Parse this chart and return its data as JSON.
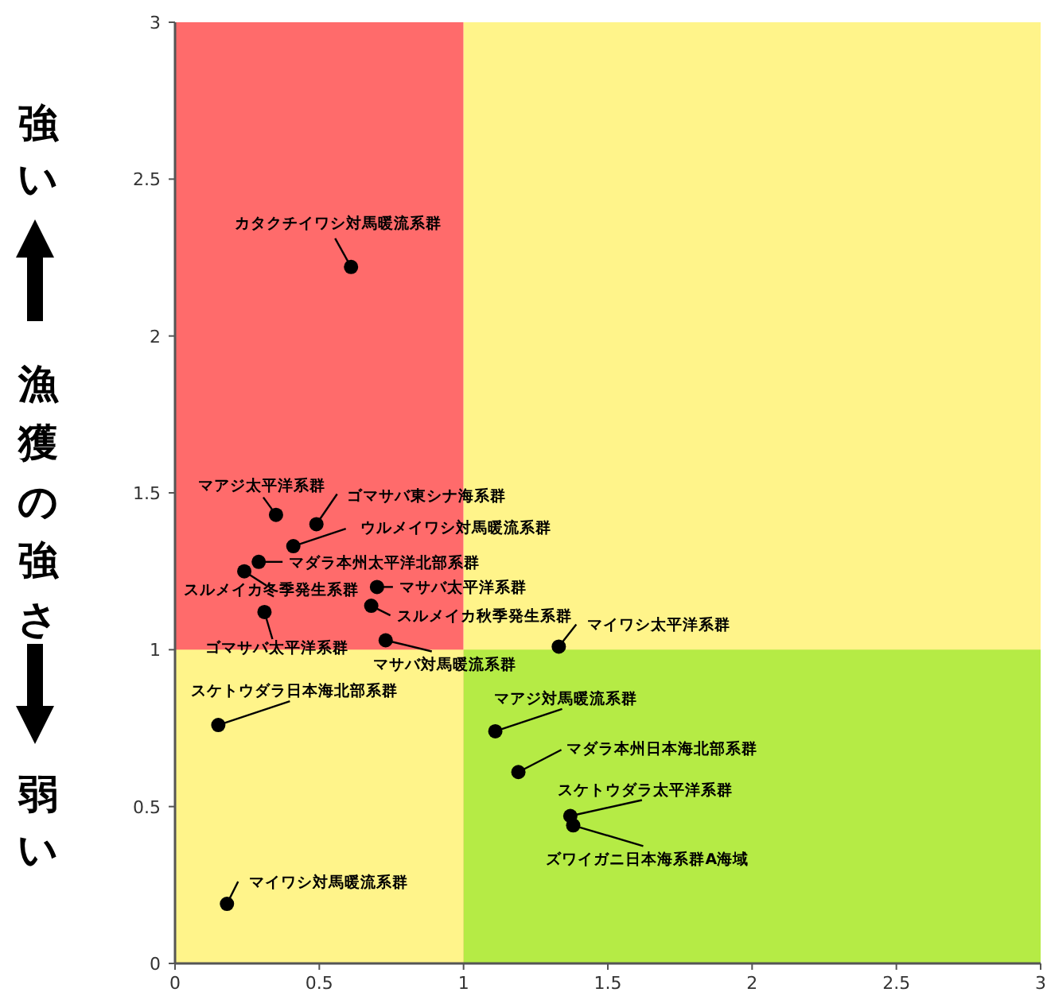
{
  "chart_data": {
    "type": "scatter",
    "ylabel": "漁獲の強さ",
    "xlim": [
      0,
      3
    ],
    "ylim": [
      0,
      3
    ],
    "xticks": [
      0,
      0.5,
      1,
      1.5,
      2,
      2.5,
      3
    ],
    "yticks": [
      0,
      0.5,
      1,
      1.5,
      2,
      2.5,
      3
    ],
    "grid": false,
    "x": [
      0.61,
      0.35,
      0.49,
      0.41,
      0.29,
      0.24,
      0.7,
      0.68,
      0.31,
      0.73,
      1.33,
      0.15,
      1.11,
      1.19,
      1.37,
      1.38,
      0.18
    ],
    "series": [
      {
        "type": "area",
        "color": "#ff6b6b",
        "x": [
          0,
          1
        ],
        "values": [
          3,
          3
        ]
      },
      {
        "type": "area",
        "color": "#fff48a",
        "x": [
          1,
          3
        ],
        "values": [
          3,
          3
        ]
      },
      {
        "type": "area",
        "color": "#fff48a",
        "x": [
          0,
          1
        ],
        "values": [
          1,
          1
        ]
      },
      {
        "type": "area",
        "color": "#b5eb45",
        "x": [
          1,
          3
        ],
        "values": [
          1,
          1
        ]
      },
      {
        "color": "#000000",
        "marker": "circle",
        "values": [
          2.22,
          1.43,
          1.4,
          1.33,
          1.28,
          1.25,
          1.2,
          1.14,
          1.12,
          1.03,
          1.01,
          0.76,
          0.74,
          0.61,
          0.47,
          0.44,
          0.19
        ]
      }
    ],
    "annotations": [
      "強い",
      "弱い",
      {
        "text": "カタクチイワシ対馬暖流系群",
        "x": 0.61,
        "y": 2.22
      },
      {
        "text": "マアジ太平洋系群",
        "x": 0.35,
        "y": 1.43
      },
      {
        "text": "ゴマサバ東シナ海系群",
        "x": 0.49,
        "y": 1.4
      },
      {
        "text": "ウルメイワシ対馬暖流系群",
        "x": 0.41,
        "y": 1.33
      },
      {
        "text": "マダラ本州太平洋北部系群",
        "x": 0.29,
        "y": 1.28
      },
      {
        "text": "スルメイカ冬季発生系群",
        "x": 0.24,
        "y": 1.25
      },
      {
        "text": "マサバ太平洋系群",
        "x": 0.7,
        "y": 1.2
      },
      {
        "text": "スルメイカ秋季発生系群",
        "x": 0.68,
        "y": 1.14
      },
      {
        "text": "ゴマサバ太平洋系群",
        "x": 0.31,
        "y": 1.12
      },
      {
        "text": "マサバ対馬暖流系群",
        "x": 0.73,
        "y": 1.03
      },
      {
        "text": "マイワシ太平洋系群",
        "x": 1.33,
        "y": 1.01
      },
      {
        "text": "スケトウダラ日本海北部系群",
        "x": 0.15,
        "y": 0.76
      },
      {
        "text": "マアジ対馬暖流系群",
        "x": 1.11,
        "y": 0.74
      },
      {
        "text": "マダラ本州日本海北部系群",
        "x": 1.19,
        "y": 0.61
      },
      {
        "text": "スケトウダラ太平洋系群",
        "x": 1.37,
        "y": 0.47
      },
      {
        "text": "ズワイガニ日本海系群A海域",
        "x": 1.38,
        "y": 0.44
      },
      {
        "text": "マイワシ対馬暖流系群",
        "x": 0.18,
        "y": 0.19
      }
    ]
  }
}
